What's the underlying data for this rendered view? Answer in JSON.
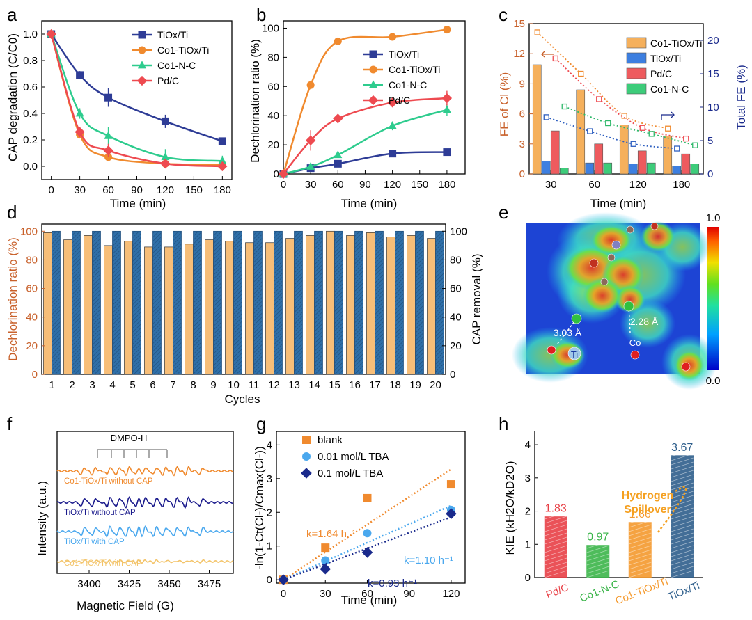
{
  "panel_letters": [
    "a",
    "b",
    "c",
    "d",
    "e",
    "f",
    "g",
    "h"
  ],
  "chart_data": [
    {
      "panel": "a",
      "type": "line",
      "xlabel": "Time (min)",
      "ylabel": "CAP degradation (C/C0)",
      "xlim": [
        -10,
        190
      ],
      "ylim": [
        -0.1,
        1.1
      ],
      "xticks": [
        "0",
        "30",
        "60",
        "90",
        "120",
        "150",
        "180"
      ],
      "yticks": [
        "0.0",
        "0.2",
        "0.4",
        "0.6",
        "0.8",
        "1.0"
      ],
      "legend_position": "top-right",
      "series": [
        {
          "name": "TiOx/Ti",
          "color": "#2E3C96",
          "marker": "square",
          "x": [
            0,
            30,
            60,
            120,
            180
          ],
          "y": [
            1.0,
            0.69,
            0.52,
            0.34,
            0.19
          ],
          "err": [
            0.02,
            0.03,
            0.07,
            0.05,
            0.02
          ]
        },
        {
          "name": "Co1-TiOx/Ti",
          "color": "#F08A2E",
          "marker": "circle",
          "x": [
            0,
            30,
            60,
            120,
            180
          ],
          "y": [
            1.0,
            0.24,
            0.07,
            0.02,
            0.01
          ],
          "err": [
            0.02,
            0.03,
            0.02,
            0.01,
            0.01
          ]
        },
        {
          "name": "Co1-N-C",
          "color": "#2ECC8E",
          "marker": "triangle",
          "x": [
            0,
            30,
            60,
            120,
            180
          ],
          "y": [
            1.0,
            0.4,
            0.23,
            0.07,
            0.04
          ],
          "err": [
            0.02,
            0.04,
            0.07,
            0.06,
            0.04
          ]
        },
        {
          "name": "Pd/C",
          "color": "#EE4A50",
          "marker": "diamond",
          "x": [
            0,
            30,
            60,
            120,
            180
          ],
          "y": [
            1.0,
            0.26,
            0.12,
            0.02,
            0.0
          ],
          "err": [
            0.02,
            0.04,
            0.05,
            0.02,
            0.01
          ]
        }
      ]
    },
    {
      "panel": "b",
      "type": "line",
      "xlabel": "Time (min)",
      "ylabel": "Dechlorination ratio (%)",
      "xlim": [
        0,
        190
      ],
      "ylim": [
        0,
        105
      ],
      "xticks": [
        "0",
        "30",
        "60",
        "90",
        "120",
        "150",
        "180"
      ],
      "yticks": [
        "0",
        "20",
        "40",
        "60",
        "80",
        "100"
      ],
      "legend_position": "middle-right",
      "series": [
        {
          "name": "TiOx/Ti",
          "color": "#2E3C96",
          "marker": "square",
          "x": [
            0,
            30,
            60,
            120,
            180
          ],
          "y": [
            0,
            4,
            7,
            14,
            15
          ],
          "err": [
            0.5,
            1,
            1,
            1,
            1
          ]
        },
        {
          "name": "Co1-TiOx/Ti",
          "color": "#F08A2E",
          "marker": "circle",
          "x": [
            0,
            30,
            60,
            120,
            180
          ],
          "y": [
            0,
            61,
            91,
            94,
            99
          ],
          "err": [
            0.5,
            3,
            1.5,
            2,
            1
          ]
        },
        {
          "name": "Co1-N-C",
          "color": "#2ECC8E",
          "marker": "triangle",
          "x": [
            0,
            30,
            60,
            120,
            180
          ],
          "y": [
            0,
            5,
            13,
            33,
            44
          ],
          "err": [
            0.5,
            1,
            1.5,
            3,
            4
          ]
        },
        {
          "name": "Pd/C",
          "color": "#EE4A50",
          "marker": "diamond",
          "x": [
            0,
            30,
            60,
            120,
            180
          ],
          "y": [
            0,
            23,
            38,
            49,
            52
          ],
          "err": [
            0.5,
            7,
            1.5,
            3,
            5
          ]
        }
      ]
    },
    {
      "panel": "c",
      "type": "bar",
      "xlabel": "Time (min)",
      "ylabel": "FE of Cl (%)",
      "ylabel_right": "Total FE (%)",
      "categories": [
        "30",
        "60",
        "120",
        "180"
      ],
      "ylim": [
        0,
        15
      ],
      "ylim_right": [
        0,
        22.5
      ],
      "yticks": [
        "0",
        "3",
        "6",
        "9",
        "12",
        "15"
      ],
      "yticks_right": [
        "0",
        "5",
        "10",
        "15",
        "20"
      ],
      "legend_position": "top-right",
      "series": [
        {
          "name": "Co1-TiOx/Ti",
          "color": "#F5B05C",
          "values": [
            10.9,
            8.4,
            4.9,
            3.8
          ]
        },
        {
          "name": "TiOx/Ti",
          "color": "#3D7FE0",
          "values": [
            1.3,
            1.1,
            1.0,
            0.8
          ]
        },
        {
          "name": "Pd/C",
          "color": "#EE5B5E",
          "values": [
            4.3,
            3.0,
            2.3,
            2.0
          ]
        },
        {
          "name": "Co1-N-C",
          "color": "#3DCC7A",
          "values": [
            0.6,
            1.1,
            1.1,
            1.0
          ]
        }
      ],
      "total_fe_series": [
        {
          "name": "Co1-TiOx/Ti",
          "color": "#F08A2E",
          "values": [
            21.2,
            15.0,
            8.7,
            6.8
          ]
        },
        {
          "name": "Pd/C",
          "color": "#EE4A50",
          "values": [
            17.3,
            11.2,
            6.9,
            5.3
          ]
        },
        {
          "name": "Co1-N-C",
          "color": "#2EB86A",
          "values": [
            10.1,
            7.6,
            6.0,
            4.3
          ]
        },
        {
          "name": "TiOx/Ti",
          "color": "#2E5FC0",
          "values": [
            8.5,
            6.4,
            4.5,
            3.8
          ]
        }
      ]
    },
    {
      "panel": "d",
      "type": "bar",
      "xlabel": "Cycles",
      "ylabel": "Dechlorination ratio (%)",
      "ylabel_right": "CAP removal (%)",
      "categories": [
        "1",
        "2",
        "3",
        "4",
        "5",
        "6",
        "7",
        "8",
        "9",
        "10",
        "11",
        "12",
        "13",
        "14",
        "15",
        "16",
        "17",
        "18",
        "19",
        "20"
      ],
      "ylim": [
        0,
        105
      ],
      "yticks": [
        "0",
        "20",
        "40",
        "60",
        "80",
        "100"
      ],
      "series": [
        {
          "name": "Dechlorination ratio",
          "color": "#F7BE78",
          "values": [
            99,
            94,
            97,
            90,
            93,
            89,
            89,
            91,
            94,
            93,
            92,
            92,
            95,
            97,
            100,
            97,
            99,
            96,
            97,
            95
          ]
        },
        {
          "name": "CAP removal",
          "color": "#2F6FA8",
          "values": [
            100,
            100,
            100,
            100,
            100,
            100,
            100,
            100,
            100,
            100,
            100,
            100,
            100,
            100,
            100,
            100,
            100,
            100,
            100,
            100
          ]
        }
      ]
    },
    {
      "panel": "e",
      "type": "heatmap",
      "colorbar_max": "1.0",
      "colorbar_min": "0.0",
      "annotations": [
        "3.03 Å",
        "2.28 Å",
        "Ti",
        "Co"
      ]
    },
    {
      "panel": "f",
      "type": "line",
      "xlabel": "Magnetic Field (G)",
      "ylabel": "Intensity (a.u.)",
      "xticks": [
        "3400",
        "3425",
        "3450",
        "3475"
      ],
      "annotation": "DMPO-H",
      "series": [
        {
          "name": "Co1-TiOx/Ti without CAP",
          "color": "#F08A2E"
        },
        {
          "name": "TiOx/Ti without CAP",
          "color": "#1A1A8C"
        },
        {
          "name": "TiOx/Ti with CAP",
          "color": "#4AA8EE"
        },
        {
          "name": "Co1-TiOx/Ti  with CAP",
          "color": "#F3C46A"
        }
      ]
    },
    {
      "panel": "g",
      "type": "scatter",
      "xlabel": "Time (min)",
      "ylabel": "-ln(1-Ct(Cl-)/Cmax(Cl-))",
      "xlim": [
        -5,
        130
      ],
      "ylim": [
        -0.1,
        4.4
      ],
      "xticks": [
        "0",
        "30",
        "60",
        "90",
        "120"
      ],
      "yticks": [
        "0",
        "1",
        "2",
        "3",
        "4"
      ],
      "legend_position": "top-left",
      "series": [
        {
          "name": "blank",
          "color": "#F08A2E",
          "marker": "square",
          "x": [
            0,
            30,
            60,
            120
          ],
          "y": [
            0,
            0.95,
            2.42,
            2.83
          ],
          "k": "k=1.64 h⁻¹"
        },
        {
          "name": "0.01 mol/L TBA",
          "color": "#4AA8EE",
          "marker": "circle",
          "x": [
            0,
            30,
            60,
            120
          ],
          "y": [
            0,
            0.57,
            1.38,
            2.07
          ],
          "k": "k=1.10 h⁻¹"
        },
        {
          "name": "0.1 mol/L TBA",
          "color": "#1A2A8C",
          "marker": "diamond",
          "x": [
            0,
            30,
            60,
            120
          ],
          "y": [
            0,
            0.32,
            0.81,
            1.96
          ],
          "k": "k=0.93 h⁻¹"
        }
      ]
    },
    {
      "panel": "h",
      "type": "bar",
      "ylabel": "KIE (kH2O/kD2O)",
      "ylim": [
        0,
        4.4
      ],
      "yticks": [
        "0",
        "1",
        "2",
        "3",
        "4"
      ],
      "categories": [
        "Pd/C",
        "Co1-N-C",
        "Co1-TiOx/Ti",
        "TiOx/Ti"
      ],
      "values": [
        1.83,
        0.97,
        1.66,
        3.67
      ],
      "value_labels": [
        "1.83",
        "0.97",
        "1.66",
        "3.67"
      ],
      "colors": [
        "#E84046",
        "#3BB54A",
        "#F59A2E",
        "#2F5F8C"
      ],
      "annotation": "Hydrogen Spillover"
    }
  ]
}
